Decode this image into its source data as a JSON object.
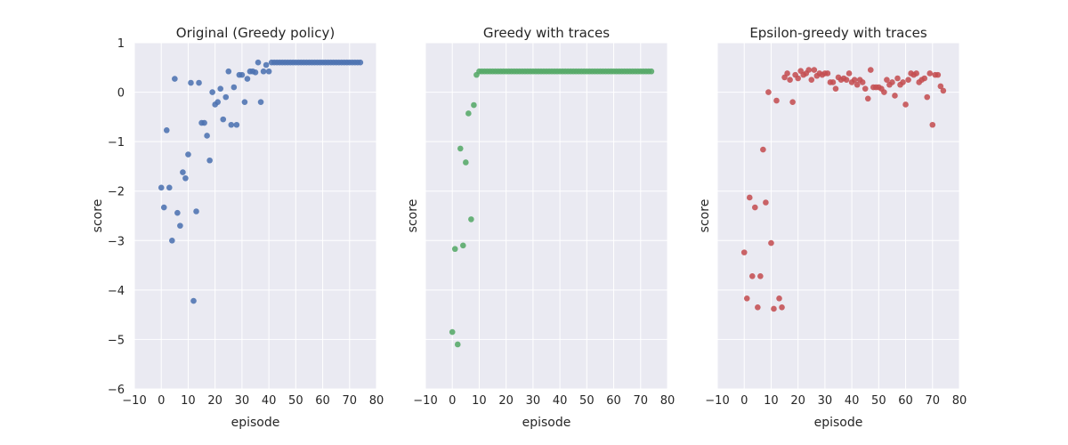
{
  "chart_data": [
    {
      "type": "scatter",
      "title": "Original (Greedy policy)",
      "xlabel": "episode",
      "ylabel": "score",
      "xlim": [
        -10,
        80
      ],
      "ylim": [
        -6,
        1
      ],
      "xticks": [
        -10,
        0,
        10,
        20,
        30,
        40,
        50,
        60,
        70,
        80
      ],
      "yticks": [
        -6,
        -5,
        -4,
        -3,
        -2,
        -1,
        0,
        1
      ],
      "ytick_labels": [
        "−6",
        "−5",
        "−4",
        "−3",
        "−2",
        "−1",
        "0",
        "1"
      ],
      "show_yticklabels": true,
      "grid": true,
      "color": "#4c72b0",
      "x": [
        0,
        1,
        2,
        3,
        4,
        5,
        6,
        7,
        8,
        9,
        10,
        11,
        12,
        13,
        14,
        15,
        16,
        17,
        18,
        19,
        20,
        21,
        22,
        23,
        24,
        25,
        26,
        27,
        28,
        29,
        30,
        31,
        32,
        33,
        34,
        35,
        36,
        37,
        38,
        39,
        40,
        41,
        42,
        43,
        44,
        45,
        46,
        47,
        48,
        49,
        50,
        51,
        52,
        53,
        54,
        55,
        56,
        57,
        58,
        59,
        60,
        61,
        62,
        63,
        64,
        65,
        66,
        67,
        68,
        69,
        70,
        71,
        72,
        73,
        74
      ],
      "y": [
        -1.93,
        -2.33,
        -0.77,
        -1.93,
        -3.0,
        0.27,
        -2.44,
        -2.7,
        -1.62,
        -1.74,
        -1.26,
        0.19,
        -4.22,
        -2.41,
        0.19,
        -0.62,
        -0.62,
        -0.88,
        -1.38,
        0.0,
        -0.25,
        -0.2,
        0.07,
        -0.55,
        -0.1,
        0.42,
        -0.66,
        0.1,
        -0.66,
        0.35,
        0.35,
        -0.2,
        0.27,
        0.42,
        0.42,
        0.4,
        0.6,
        -0.2,
        0.42,
        0.55,
        0.42,
        0.6,
        0.6,
        0.6,
        0.6,
        0.6,
        0.6,
        0.6,
        0.6,
        0.6,
        0.6,
        0.6,
        0.6,
        0.6,
        0.6,
        0.6,
        0.6,
        0.6,
        0.6,
        0.6,
        0.6,
        0.6,
        0.6,
        0.6,
        0.6,
        0.6,
        0.6,
        0.6,
        0.6,
        0.6,
        0.6,
        0.6,
        0.6,
        0.6,
        0.6
      ]
    },
    {
      "type": "scatter",
      "title": "Greedy with traces",
      "xlabel": "episode",
      "ylabel": "score",
      "xlim": [
        -10,
        80
      ],
      "ylim": [
        -6,
        1
      ],
      "xticks": [
        -10,
        0,
        10,
        20,
        30,
        40,
        50,
        60,
        70,
        80
      ],
      "yticks": [
        -6,
        -5,
        -4,
        -3,
        -2,
        -1,
        0,
        1
      ],
      "show_yticklabels": false,
      "grid": true,
      "color": "#55a868",
      "x": [
        0,
        1,
        2,
        3,
        4,
        5,
        6,
        7,
        8,
        9,
        10,
        11,
        12,
        13,
        14,
        15,
        16,
        17,
        18,
        19,
        20,
        21,
        22,
        23,
        24,
        25,
        26,
        27,
        28,
        29,
        30,
        31,
        32,
        33,
        34,
        35,
        36,
        37,
        38,
        39,
        40,
        41,
        42,
        43,
        44,
        45,
        46,
        47,
        48,
        49,
        50,
        51,
        52,
        53,
        54,
        55,
        56,
        57,
        58,
        59,
        60,
        61,
        62,
        63,
        64,
        65,
        66,
        67,
        68,
        69,
        70,
        71,
        72,
        73,
        74
      ],
      "y": [
        -4.85,
        -3.17,
        -5.1,
        -1.14,
        -3.1,
        -1.42,
        -0.43,
        -2.57,
        -0.26,
        0.35,
        0.42,
        0.42,
        0.42,
        0.42,
        0.42,
        0.42,
        0.42,
        0.42,
        0.42,
        0.42,
        0.42,
        0.42,
        0.42,
        0.42,
        0.42,
        0.42,
        0.42,
        0.42,
        0.42,
        0.42,
        0.42,
        0.42,
        0.42,
        0.42,
        0.42,
        0.42,
        0.42,
        0.42,
        0.42,
        0.42,
        0.42,
        0.42,
        0.42,
        0.42,
        0.42,
        0.42,
        0.42,
        0.42,
        0.42,
        0.42,
        0.42,
        0.42,
        0.42,
        0.42,
        0.42,
        0.42,
        0.42,
        0.42,
        0.42,
        0.42,
        0.42,
        0.42,
        0.42,
        0.42,
        0.42,
        0.42,
        0.42,
        0.42,
        0.42,
        0.42,
        0.42,
        0.42,
        0.42,
        0.42,
        0.42
      ]
    },
    {
      "type": "scatter",
      "title": "Epsilon-greedy with traces",
      "xlabel": "episode",
      "ylabel": "score",
      "xlim": [
        -10,
        80
      ],
      "ylim": [
        -6,
        1
      ],
      "xticks": [
        -10,
        0,
        10,
        20,
        30,
        40,
        50,
        60,
        70,
        80
      ],
      "yticks": [
        -6,
        -5,
        -4,
        -3,
        -2,
        -1,
        0,
        1
      ],
      "show_yticklabels": false,
      "grid": true,
      "color": "#c44e52",
      "x": [
        0,
        1,
        2,
        3,
        4,
        5,
        6,
        7,
        8,
        9,
        10,
        11,
        12,
        13,
        14,
        15,
        16,
        17,
        18,
        19,
        20,
        21,
        22,
        23,
        24,
        25,
        26,
        27,
        28,
        29,
        30,
        31,
        32,
        33,
        34,
        35,
        36,
        37,
        38,
        39,
        40,
        41,
        42,
        43,
        44,
        45,
        46,
        47,
        48,
        49,
        50,
        51,
        52,
        53,
        54,
        55,
        56,
        57,
        58,
        59,
        60,
        61,
        62,
        63,
        64,
        65,
        66,
        67,
        68,
        69,
        70,
        71,
        72,
        73,
        74
      ],
      "y": [
        -3.24,
        -4.17,
        -2.13,
        -3.72,
        -2.33,
        -4.35,
        -3.72,
        -1.16,
        -2.23,
        0.0,
        -3.05,
        -4.38,
        -0.17,
        -4.17,
        -4.35,
        0.3,
        0.38,
        0.25,
        -0.2,
        0.35,
        0.28,
        0.43,
        0.35,
        0.38,
        0.45,
        0.25,
        0.45,
        0.33,
        0.38,
        0.35,
        0.38,
        0.38,
        0.2,
        0.2,
        0.07,
        0.3,
        0.25,
        0.28,
        0.25,
        0.38,
        0.2,
        0.25,
        0.15,
        0.25,
        0.2,
        0.07,
        -0.13,
        0.45,
        0.1,
        0.1,
        0.1,
        0.07,
        0.0,
        0.25,
        0.15,
        0.2,
        -0.07,
        0.28,
        0.15,
        0.2,
        -0.25,
        0.25,
        0.38,
        0.35,
        0.38,
        0.2,
        0.25,
        0.28,
        -0.1,
        0.38,
        -0.66,
        0.35,
        0.35,
        0.12,
        0.03
      ]
    }
  ]
}
